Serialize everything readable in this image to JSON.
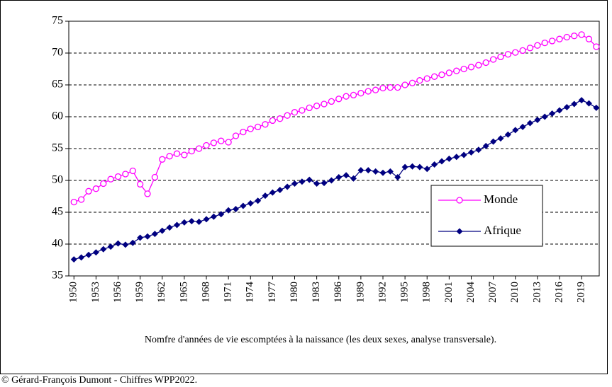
{
  "chart_data": {
    "type": "line",
    "caption": "Nomfre d'années de vie escomptées à la naissance (les deux sexes, analyse transversale).",
    "credit": "© Gérard-François Dumont - Chiffres WPP2022.",
    "x": [
      1950,
      1951,
      1952,
      1953,
      1954,
      1955,
      1956,
      1957,
      1958,
      1959,
      1960,
      1961,
      1962,
      1963,
      1964,
      1965,
      1966,
      1967,
      1968,
      1969,
      1970,
      1971,
      1972,
      1973,
      1974,
      1975,
      1976,
      1977,
      1978,
      1979,
      1980,
      1981,
      1982,
      1983,
      1984,
      1985,
      1986,
      1987,
      1988,
      1989,
      1990,
      1991,
      1992,
      1993,
      1994,
      1995,
      1996,
      1997,
      1998,
      1999,
      2000,
      2001,
      2002,
      2003,
      2004,
      2005,
      2006,
      2007,
      2008,
      2009,
      2010,
      2011,
      2012,
      2013,
      2014,
      2015,
      2016,
      2017,
      2018,
      2019,
      2020,
      2021
    ],
    "series": [
      {
        "name": "Monde",
        "color": "#ff00ff",
        "marker": "circle",
        "values": [
          46.6,
          47.0,
          48.3,
          48.7,
          49.5,
          50.2,
          50.6,
          51.0,
          51.5,
          49.4,
          47.9,
          50.5,
          53.3,
          53.8,
          54.2,
          54.0,
          54.6,
          55.0,
          55.5,
          55.9,
          56.2,
          56.0,
          57.0,
          57.6,
          58.1,
          58.4,
          58.8,
          59.4,
          59.7,
          60.2,
          60.7,
          61.0,
          61.4,
          61.7,
          62.0,
          62.4,
          62.8,
          63.2,
          63.4,
          63.7,
          64.0,
          64.2,
          64.5,
          64.6,
          64.6,
          65.0,
          65.3,
          65.7,
          66.0,
          66.3,
          66.6,
          66.9,
          67.2,
          67.5,
          67.8,
          68.1,
          68.5,
          69.0,
          69.4,
          69.8,
          70.1,
          70.4,
          70.8,
          71.2,
          71.6,
          71.9,
          72.2,
          72.5,
          72.7,
          72.9,
          72.2,
          71.0
        ]
      },
      {
        "name": "Afrique",
        "color": "#000080",
        "marker": "diamond",
        "values": [
          37.6,
          37.9,
          38.3,
          38.7,
          39.2,
          39.6,
          40.1,
          39.9,
          40.2,
          41.0,
          41.2,
          41.6,
          42.1,
          42.6,
          43.0,
          43.4,
          43.6,
          43.5,
          43.9,
          44.3,
          44.7,
          45.3,
          45.5,
          46.0,
          46.4,
          46.8,
          47.6,
          48.1,
          48.5,
          49.0,
          49.5,
          49.8,
          50.1,
          49.5,
          49.6,
          50.0,
          50.5,
          50.8,
          50.3,
          51.6,
          51.6,
          51.4,
          51.2,
          51.4,
          50.5,
          52.1,
          52.2,
          52.1,
          51.8,
          52.5,
          53.0,
          53.4,
          53.7,
          54.0,
          54.4,
          54.8,
          55.4,
          56.1,
          56.6,
          57.2,
          57.9,
          58.4,
          59.0,
          59.5,
          60.0,
          60.5,
          61.0,
          61.5,
          62.0,
          62.6,
          62.1,
          61.4
        ]
      }
    ],
    "xlim": [
      1949.3,
      2021.4
    ],
    "xticks": [
      1950,
      1953,
      1956,
      1959,
      1962,
      1965,
      1968,
      1971,
      1974,
      1977,
      1980,
      1983,
      1986,
      1989,
      1992,
      1995,
      1998,
      2001,
      2004,
      2007,
      2010,
      2013,
      2016,
      2019
    ],
    "ylim": [
      35,
      75
    ],
    "yticks": [
      35,
      40,
      45,
      50,
      55,
      60,
      65,
      70,
      75
    ],
    "grid": true,
    "legend": "right"
  }
}
